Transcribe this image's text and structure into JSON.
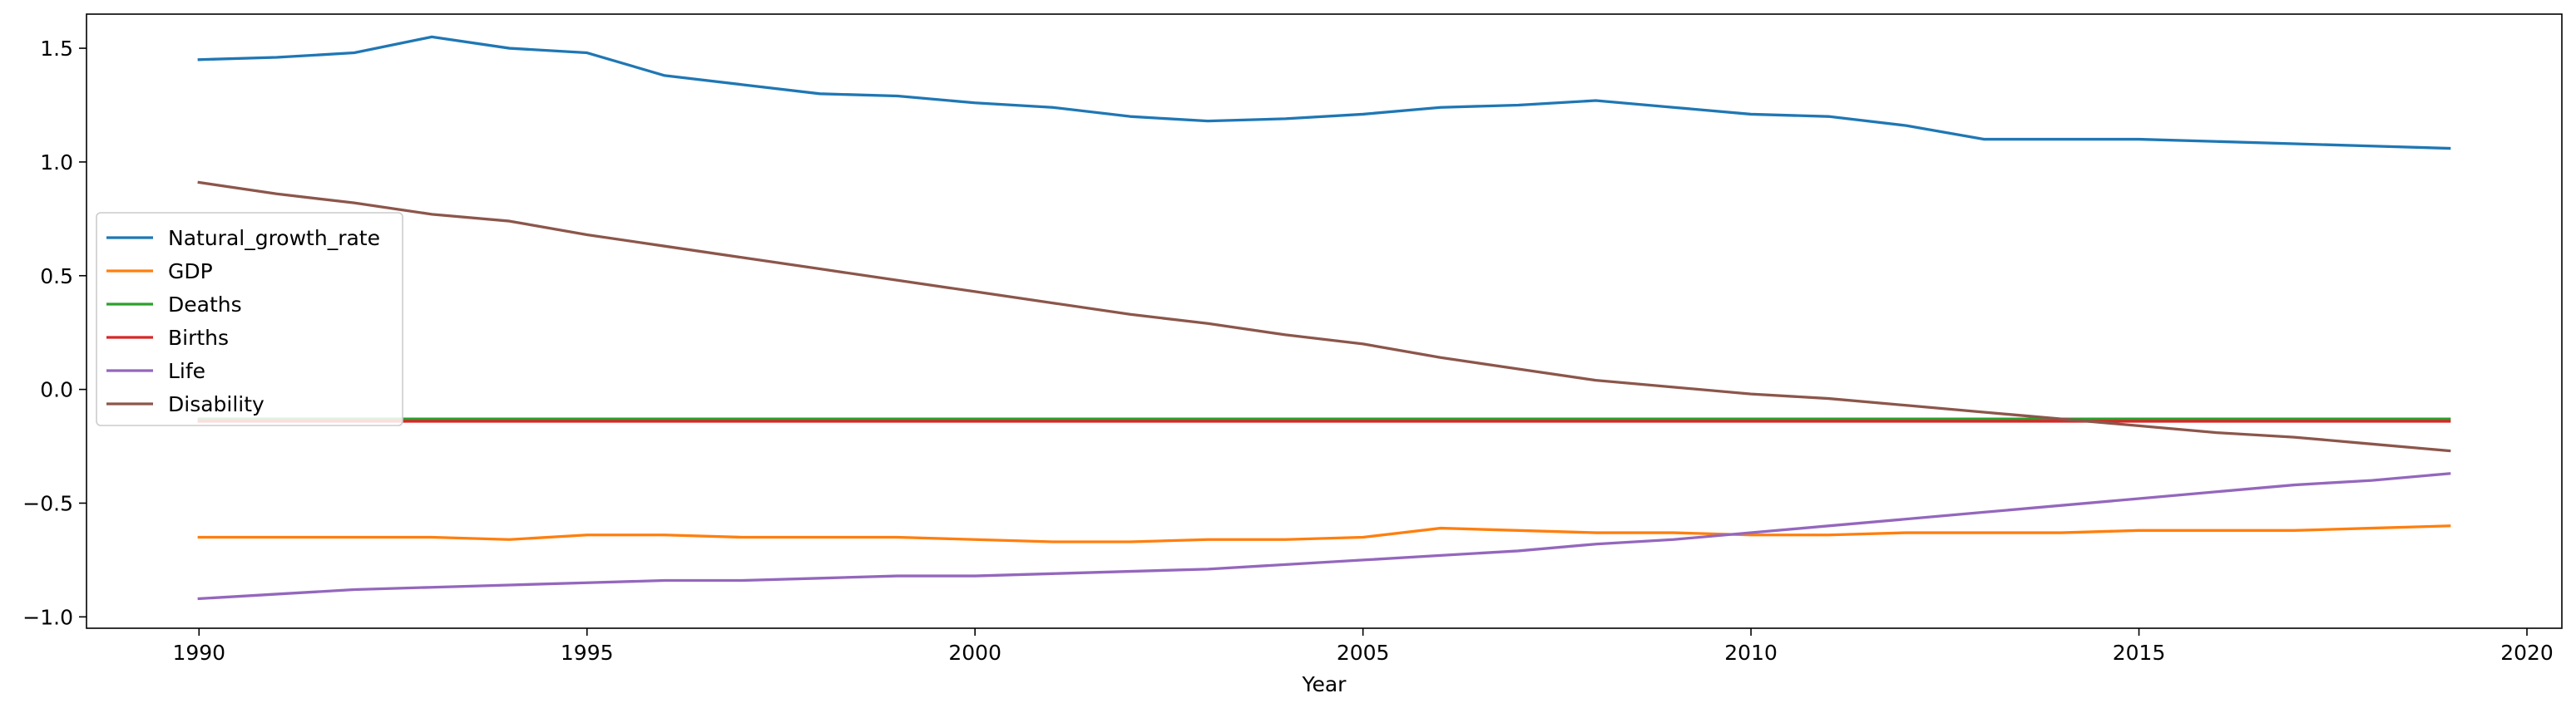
{
  "chart_data": {
    "type": "line",
    "title": "",
    "xlabel": "Year",
    "ylabel": "",
    "xlim": [
      1988.55,
      2020.45
    ],
    "ylim": [
      -1.05,
      1.65
    ],
    "xticks": [
      1990,
      1995,
      2000,
      2005,
      2010,
      2015,
      2020
    ],
    "yticks": [
      -1.0,
      -0.5,
      0.0,
      0.5,
      1.0,
      1.5
    ],
    "ytick_labels": [
      "−1.0",
      "−0.5",
      "0.0",
      "0.5",
      "1.0",
      "1.5"
    ],
    "grid": false,
    "legend_position": "center-left",
    "x": [
      1990,
      1991,
      1992,
      1993,
      1994,
      1995,
      1996,
      1997,
      1998,
      1999,
      2000,
      2001,
      2002,
      2003,
      2004,
      2005,
      2006,
      2007,
      2008,
      2009,
      2010,
      2011,
      2012,
      2013,
      2014,
      2015,
      2016,
      2017,
      2018,
      2019
    ],
    "series": [
      {
        "name": "Natural_growth_rate",
        "color": "#1f77b4",
        "values": [
          1.45,
          1.46,
          1.48,
          1.55,
          1.5,
          1.48,
          1.38,
          1.34,
          1.3,
          1.29,
          1.26,
          1.24,
          1.2,
          1.18,
          1.19,
          1.21,
          1.24,
          1.25,
          1.27,
          1.24,
          1.21,
          1.2,
          1.16,
          1.1,
          1.1,
          1.1,
          1.09,
          1.08,
          1.07,
          1.06
        ]
      },
      {
        "name": "GDP",
        "color": "#ff7f0e",
        "values": [
          -0.65,
          -0.65,
          -0.65,
          -0.65,
          -0.66,
          -0.64,
          -0.64,
          -0.65,
          -0.65,
          -0.65,
          -0.66,
          -0.67,
          -0.67,
          -0.66,
          -0.66,
          -0.65,
          -0.61,
          -0.62,
          -0.63,
          -0.63,
          -0.64,
          -0.64,
          -0.63,
          -0.63,
          -0.63,
          -0.62,
          -0.62,
          -0.62,
          -0.61,
          -0.6
        ]
      },
      {
        "name": "Deaths",
        "color": "#2ca02c",
        "values": [
          -0.13,
          -0.13,
          -0.13,
          -0.13,
          -0.13,
          -0.13,
          -0.13,
          -0.13,
          -0.13,
          -0.13,
          -0.13,
          -0.13,
          -0.13,
          -0.13,
          -0.13,
          -0.13,
          -0.13,
          -0.13,
          -0.13,
          -0.13,
          -0.13,
          -0.13,
          -0.13,
          -0.13,
          -0.13,
          -0.13,
          -0.13,
          -0.13,
          -0.13,
          -0.13
        ]
      },
      {
        "name": "Births",
        "color": "#d62728",
        "values": [
          -0.14,
          -0.14,
          -0.14,
          -0.14,
          -0.14,
          -0.14,
          -0.14,
          -0.14,
          -0.14,
          -0.14,
          -0.14,
          -0.14,
          -0.14,
          -0.14,
          -0.14,
          -0.14,
          -0.14,
          -0.14,
          -0.14,
          -0.14,
          -0.14,
          -0.14,
          -0.14,
          -0.14,
          -0.14,
          -0.14,
          -0.14,
          -0.14,
          -0.14,
          -0.14
        ]
      },
      {
        "name": "Life",
        "color": "#9467bd",
        "values": [
          -0.92,
          -0.9,
          -0.88,
          -0.87,
          -0.86,
          -0.85,
          -0.84,
          -0.84,
          -0.83,
          -0.82,
          -0.82,
          -0.81,
          -0.8,
          -0.79,
          -0.77,
          -0.75,
          -0.73,
          -0.71,
          -0.68,
          -0.66,
          -0.63,
          -0.6,
          -0.57,
          -0.54,
          -0.51,
          -0.48,
          -0.45,
          -0.42,
          -0.4,
          -0.37
        ]
      },
      {
        "name": "Disability",
        "color": "#8c564b",
        "values": [
          0.91,
          0.86,
          0.82,
          0.77,
          0.74,
          0.68,
          0.63,
          0.58,
          0.53,
          0.48,
          0.43,
          0.38,
          0.33,
          0.29,
          0.24,
          0.2,
          0.14,
          0.09,
          0.04,
          0.01,
          -0.02,
          -0.04,
          -0.07,
          -0.1,
          -0.13,
          -0.16,
          -0.19,
          -0.21,
          -0.24,
          -0.27
        ]
      }
    ]
  }
}
